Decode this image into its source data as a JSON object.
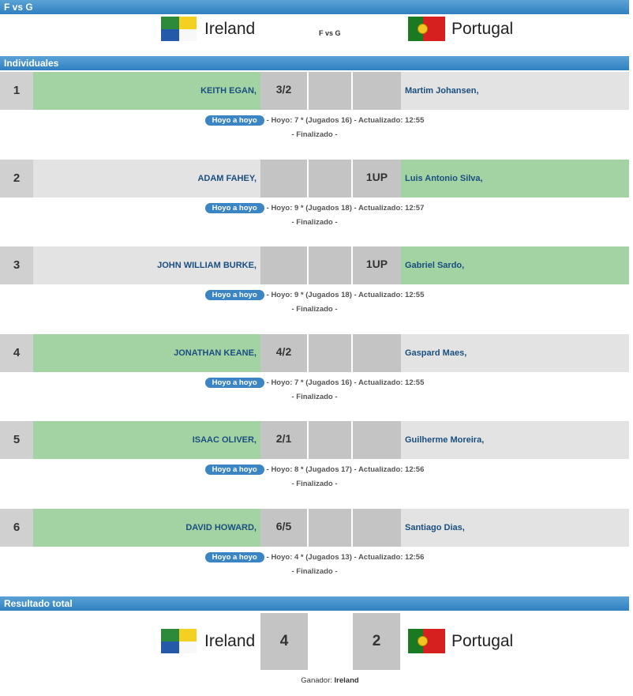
{
  "title_bar": "F vs G",
  "match": {
    "home_team": "Ireland",
    "away_team": "Portugal",
    "vs_label": "F vs G"
  },
  "section_individuales": "Individuales",
  "section_total": "Resultado total",
  "hoyo_label": "Hoyo a hoyo",
  "matches": [
    {
      "num": "1",
      "home": "KEITH EGAN,",
      "home_score": "3/2",
      "away_score": "",
      "away": "Martim Johansen,",
      "winner": "home",
      "info": "- Hoyo: 7 * (Jugados 16) - Actualizado: 12:55",
      "status": "- Finalizado -"
    },
    {
      "num": "2",
      "home": "ADAM FAHEY,",
      "home_score": "",
      "away_score": "1UP",
      "away": "Luis Antonio Silva,",
      "winner": "away",
      "info": "- Hoyo: 9 * (Jugados 18) - Actualizado: 12:57",
      "status": "- Finalizado -"
    },
    {
      "num": "3",
      "home": "JOHN WILLIAM BURKE,",
      "home_score": "",
      "away_score": "1UP",
      "away": "Gabriel Sardo,",
      "winner": "away",
      "info": "- Hoyo: 9 * (Jugados 18) - Actualizado: 12:55",
      "status": "- Finalizado -"
    },
    {
      "num": "4",
      "home": "JONATHAN KEANE,",
      "home_score": "4/2",
      "away_score": "",
      "away": "Gaspard Maes,",
      "winner": "home",
      "info": "- Hoyo: 7 * (Jugados 16) - Actualizado: 12:55",
      "status": "- Finalizado -"
    },
    {
      "num": "5",
      "home": "ISAAC OLIVER,",
      "home_score": "2/1",
      "away_score": "",
      "away": "Guilherme Moreira,",
      "winner": "home",
      "info": "- Hoyo: 8 * (Jugados 17) - Actualizado: 12:56",
      "status": "- Finalizado -"
    },
    {
      "num": "6",
      "home": "DAVID HOWARD,",
      "home_score": "6/5",
      "away_score": "",
      "away": "Santiago Dias,",
      "winner": "home",
      "info": "- Hoyo: 4 * (Jugados 13) - Actualizado: 12:56",
      "status": "- Finalizado -"
    }
  ],
  "total": {
    "home_team": "Ireland",
    "home_score": "4",
    "away_score": "2",
    "away_team": "Portugal",
    "winner_label": "Ganador:",
    "winner": "Ireland"
  },
  "colors": {
    "win": "#a3d3a3",
    "lose": "#e3e3e3",
    "bar": "#2f7fc0",
    "pill": "#3b85c4"
  },
  "icons": {
    "home_flag": "ireland-provinces-flag-icon",
    "away_flag": "portugal-flag-icon"
  }
}
